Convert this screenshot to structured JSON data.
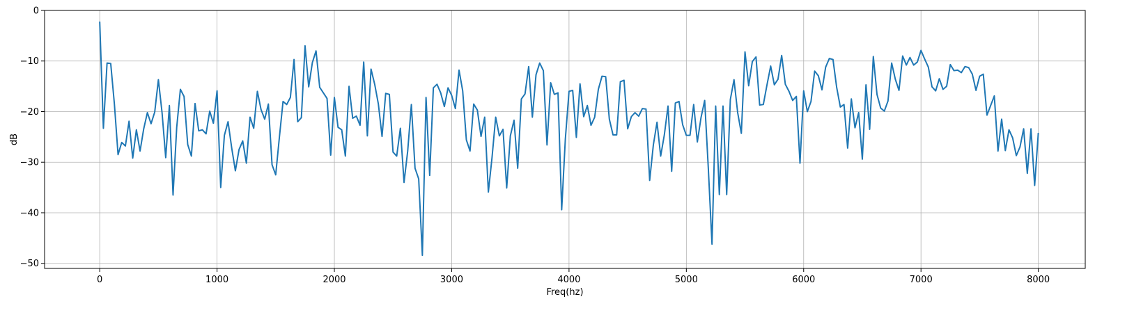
{
  "chart_data": {
    "type": "line",
    "title": "",
    "xlabel": "Freq(hz)",
    "ylabel": "dB",
    "xlim": [
      -470,
      8400
    ],
    "ylim": [
      -51,
      0
    ],
    "xticks": [
      0,
      1000,
      2000,
      3000,
      4000,
      5000,
      6000,
      7000,
      8000
    ],
    "xtick_labels": [
      "0",
      "1000",
      "2000",
      "3000",
      "4000",
      "5000",
      "6000",
      "7000",
      "8000"
    ],
    "yticks": [
      -50,
      -40,
      -30,
      -20,
      -10,
      0
    ],
    "ytick_labels": [
      "−50",
      "−40",
      "−30",
      "−20",
      "−10",
      "0"
    ],
    "grid": true,
    "colors": {
      "line": "#1f77b4",
      "grid": "#b0b0b0",
      "axes": "#000000"
    },
    "series": [
      {
        "x_step": 31.25,
        "x_start": 0,
        "values": [
          -2.2,
          -23.3,
          -10.4,
          -10.5,
          -18.5,
          -28.5,
          -26.1,
          -26.8,
          -21.9,
          -29.2,
          -23.6,
          -27.8,
          -23.4,
          -20.2,
          -22.4,
          -20.1,
          -13.7,
          -20.2,
          -29.1,
          -18.8,
          -36.5,
          -23.1,
          -15.6,
          -17,
          -26.5,
          -28.8,
          -18.4,
          -23.8,
          -23.6,
          -24.4,
          -19.9,
          -22.3,
          -15.9,
          -35,
          -24.7,
          -22,
          -27.2,
          -31.7,
          -27.5,
          -25.8,
          -30.2,
          -21.1,
          -23.3,
          -16,
          -19.6,
          -21.5,
          -18.5,
          -30.5,
          -32.5,
          -25.1,
          -18,
          -18.6,
          -17.2,
          -9.7,
          -22,
          -21.2,
          -7,
          -15.1,
          -10.3,
          -8,
          -15.2,
          -16.3,
          -17.4,
          -28.6,
          -17.2,
          -23.1,
          -23.6,
          -28.8,
          -15,
          -21.3,
          -20.9,
          -22.7,
          -10.2,
          -24.8,
          -11.6,
          -14.6,
          -18.5,
          -24.9,
          -16.4,
          -16.6,
          -28,
          -28.8,
          -23.3,
          -34,
          -27.8,
          -18.6,
          -31.2,
          -33.3,
          -48.4,
          -17.2,
          -32.6,
          -15.3,
          -14.6,
          -16.3,
          -19,
          -15.3,
          -16.8,
          -19.4,
          -11.8,
          -15.9,
          -25.6,
          -27.8,
          -18.5,
          -19.7,
          -24.9,
          -21.1,
          -35.9,
          -29.1,
          -21.1,
          -24.8,
          -23.5,
          -35.1,
          -24.8,
          -21.7,
          -31.2,
          -17.5,
          -16.5,
          -11.1,
          -21.1,
          -12.7,
          -10.4,
          -11.9,
          -26.6,
          -14.3,
          -16.6,
          -16.3,
          -39.4,
          -25.4,
          -16,
          -15.8,
          -25.1,
          -14.5,
          -21,
          -18.8,
          -22.7,
          -21.1,
          -15.6,
          -13,
          -13.1,
          -21.5,
          -24.6,
          -24.6,
          -14.1,
          -13.8,
          -23.4,
          -21,
          -20.2,
          -20.9,
          -19.4,
          -19.5,
          -33.6,
          -26.6,
          -22.1,
          -28.8,
          -24.6,
          -18.9,
          -31.8,
          -18.3,
          -18,
          -22.6,
          -24.7,
          -24.7,
          -18.6,
          -26,
          -21.2,
          -17.8,
          -31.3,
          -46.2,
          -18.9,
          -36.4,
          -18.9,
          -36.4,
          -17.6,
          -13.7,
          -20.2,
          -24.3,
          -8.2,
          -14.9,
          -10.1,
          -9.2,
          -18.7,
          -18.6,
          -14.7,
          -11,
          -14.7,
          -13.6,
          -8.9,
          -14.6,
          -16,
          -17.8,
          -17,
          -30.2,
          -15.9,
          -20,
          -18,
          -12,
          -12.9,
          -15.7,
          -11.2,
          -9.5,
          -9.7,
          -15.2,
          -19.1,
          -18.6,
          -27.2,
          -17.5,
          -23.2,
          -20.2,
          -29.4,
          -14.7,
          -23.5,
          -9.1,
          -16.6,
          -19.3,
          -19.9,
          -17.9,
          -10.4,
          -13.6,
          -15.8,
          -9,
          -10.8,
          -9.3,
          -10.8,
          -10.2,
          -7.9,
          -9.6,
          -11.2,
          -15.1,
          -15.9,
          -13.5,
          -15.6,
          -15,
          -10.7,
          -11.9,
          -11.8,
          -12.3,
          -11.1,
          -11.3,
          -12.6,
          -15.8,
          -13,
          -12.6,
          -20.7,
          -18.8,
          -16.9,
          -27.8,
          -21.5,
          -27.7,
          -23.6,
          -25.2,
          -28.7,
          -27,
          -23.4,
          -32.2,
          -23.4,
          -34.6,
          -24.2
        ]
      }
    ]
  }
}
